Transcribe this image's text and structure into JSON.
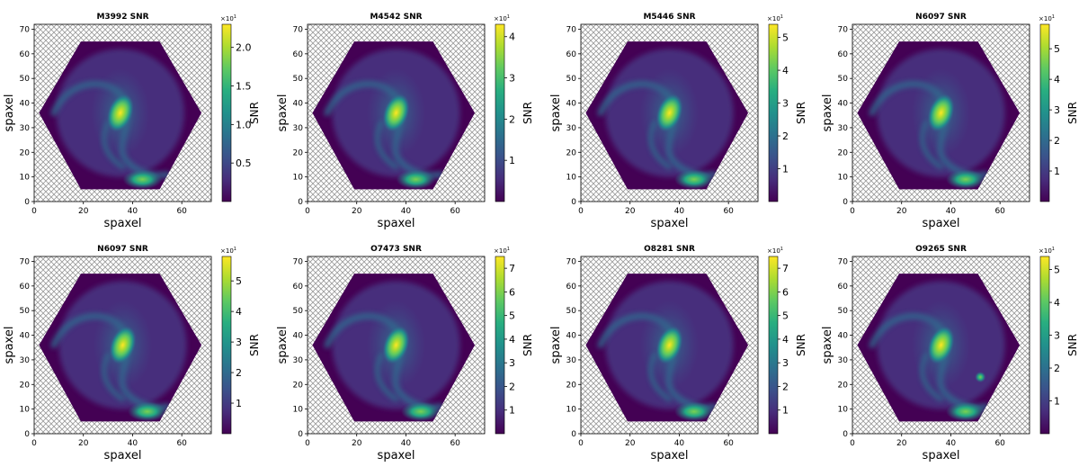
{
  "chart_data": [
    {
      "type": "heatmap",
      "title": "M3992 SNR",
      "xlabel": "spaxel",
      "ylabel": "spaxel",
      "colorbar_label": "SNR",
      "colorbar_multiplier": "×10",
      "colorbar_exponent": "1",
      "colorbar_ticks": [
        0.5,
        1.0,
        1.5,
        2.0
      ],
      "colorbar_tick_labels": [
        "0.5",
        "1.0",
        "1.5",
        "2.0"
      ],
      "vlim": [
        0.0,
        2.3
      ],
      "xticks": [
        0,
        20,
        40,
        60
      ],
      "yticks": [
        0,
        10,
        20,
        30,
        40,
        50,
        60,
        70
      ],
      "xlim": [
        0,
        72
      ],
      "ylim": [
        0,
        72
      ],
      "colormap": "viridis",
      "peak": {
        "x": 35,
        "y": 36
      },
      "secondary": {
        "x": 44,
        "y": 9
      }
    },
    {
      "type": "heatmap",
      "title": "M4542 SNR",
      "xlabel": "spaxel",
      "ylabel": "spaxel",
      "colorbar_label": "SNR",
      "colorbar_multiplier": "×10",
      "colorbar_exponent": "1",
      "colorbar_ticks": [
        1,
        2,
        3,
        4
      ],
      "colorbar_tick_labels": [
        "1",
        "2",
        "3",
        "4"
      ],
      "vlim": [
        0.0,
        4.3
      ],
      "xticks": [
        0,
        20,
        40,
        60
      ],
      "yticks": [
        0,
        10,
        20,
        30,
        40,
        50,
        60,
        70
      ],
      "xlim": [
        0,
        72
      ],
      "ylim": [
        0,
        72
      ],
      "colormap": "viridis",
      "peak": {
        "x": 36,
        "y": 36
      },
      "secondary": {
        "x": 44,
        "y": 9
      }
    },
    {
      "type": "heatmap",
      "title": "M5446 SNR",
      "xlabel": "spaxel",
      "ylabel": "spaxel",
      "colorbar_label": "SNR",
      "colorbar_multiplier": "×10",
      "colorbar_exponent": "1",
      "colorbar_ticks": [
        1,
        2,
        3,
        4,
        5
      ],
      "colorbar_tick_labels": [
        "1",
        "2",
        "3",
        "4",
        "5"
      ],
      "vlim": [
        0.0,
        5.4
      ],
      "xticks": [
        0,
        20,
        40,
        60
      ],
      "yticks": [
        0,
        10,
        20,
        30,
        40,
        50,
        60,
        70
      ],
      "xlim": [
        0,
        72
      ],
      "ylim": [
        0,
        72
      ],
      "colormap": "viridis",
      "peak": {
        "x": 36,
        "y": 36
      },
      "secondary": {
        "x": 46,
        "y": 9
      }
    },
    {
      "type": "heatmap",
      "title": "N6097 SNR",
      "xlabel": "spaxel",
      "ylabel": "spaxel",
      "colorbar_label": "SNR",
      "colorbar_multiplier": "×10",
      "colorbar_exponent": "1",
      "colorbar_ticks": [
        1,
        2,
        3,
        4,
        5
      ],
      "colorbar_tick_labels": [
        "1",
        "2",
        "3",
        "4",
        "5"
      ],
      "vlim": [
        0.0,
        5.8
      ],
      "xticks": [
        0,
        20,
        40,
        60
      ],
      "yticks": [
        0,
        10,
        20,
        30,
        40,
        50,
        60,
        70
      ],
      "xlim": [
        0,
        72
      ],
      "ylim": [
        0,
        72
      ],
      "colormap": "viridis",
      "peak": {
        "x": 36,
        "y": 36
      },
      "secondary": {
        "x": 46,
        "y": 9
      }
    },
    {
      "type": "heatmap",
      "title": "N6097 SNR",
      "xlabel": "spaxel",
      "ylabel": "spaxel",
      "colorbar_label": "SNR",
      "colorbar_multiplier": "×10",
      "colorbar_exponent": "1",
      "colorbar_ticks": [
        1,
        2,
        3,
        4,
        5
      ],
      "colorbar_tick_labels": [
        "1",
        "2",
        "3",
        "4",
        "5"
      ],
      "vlim": [
        0.0,
        5.8
      ],
      "xticks": [
        0,
        20,
        40,
        60
      ],
      "yticks": [
        0,
        10,
        20,
        30,
        40,
        50,
        60,
        70
      ],
      "xlim": [
        0,
        72
      ],
      "ylim": [
        0,
        72
      ],
      "colormap": "viridis",
      "peak": {
        "x": 36,
        "y": 36
      },
      "secondary": {
        "x": 46,
        "y": 9
      }
    },
    {
      "type": "heatmap",
      "title": "O7473 SNR",
      "xlabel": "spaxel",
      "ylabel": "spaxel",
      "colorbar_label": "SNR",
      "colorbar_multiplier": "×10",
      "colorbar_exponent": "1",
      "colorbar_ticks": [
        1,
        2,
        3,
        4,
        5,
        6,
        7
      ],
      "colorbar_tick_labels": [
        "1",
        "2",
        "3",
        "4",
        "5",
        "6",
        "7"
      ],
      "vlim": [
        0.0,
        7.5
      ],
      "xticks": [
        0,
        20,
        40,
        60
      ],
      "yticks": [
        0,
        10,
        20,
        30,
        40,
        50,
        60,
        70
      ],
      "xlim": [
        0,
        72
      ],
      "ylim": [
        0,
        72
      ],
      "colormap": "viridis",
      "peak": {
        "x": 36,
        "y": 36
      },
      "secondary": {
        "x": 46,
        "y": 9
      }
    },
    {
      "type": "heatmap",
      "title": "O8281 SNR",
      "xlabel": "spaxel",
      "ylabel": "spaxel",
      "colorbar_label": "SNR",
      "colorbar_multiplier": "×10",
      "colorbar_exponent": "1",
      "colorbar_ticks": [
        1,
        2,
        3,
        4,
        5,
        6,
        7
      ],
      "colorbar_tick_labels": [
        "1",
        "2",
        "3",
        "4",
        "5",
        "6",
        "7"
      ],
      "vlim": [
        0.0,
        7.5
      ],
      "xticks": [
        0,
        20,
        40,
        60
      ],
      "yticks": [
        0,
        10,
        20,
        30,
        40,
        50,
        60,
        70
      ],
      "xlim": [
        0,
        72
      ],
      "ylim": [
        0,
        72
      ],
      "colormap": "viridis",
      "peak": {
        "x": 36,
        "y": 36
      },
      "secondary": {
        "x": 46,
        "y": 9
      }
    },
    {
      "type": "heatmap",
      "title": "O9265 SNR",
      "xlabel": "spaxel",
      "ylabel": "spaxel",
      "colorbar_label": "SNR",
      "colorbar_multiplier": "×10",
      "colorbar_exponent": "1",
      "colorbar_ticks": [
        1,
        2,
        3,
        4,
        5
      ],
      "colorbar_tick_labels": [
        "1",
        "2",
        "3",
        "4",
        "5"
      ],
      "vlim": [
        0.0,
        5.4
      ],
      "xticks": [
        0,
        20,
        40,
        60
      ],
      "yticks": [
        0,
        10,
        20,
        30,
        40,
        50,
        60,
        70
      ],
      "xlim": [
        0,
        72
      ],
      "ylim": [
        0,
        72
      ],
      "colormap": "viridis",
      "peak": {
        "x": 36,
        "y": 36
      },
      "secondary": {
        "x": 46,
        "y": 9
      }
    }
  ]
}
